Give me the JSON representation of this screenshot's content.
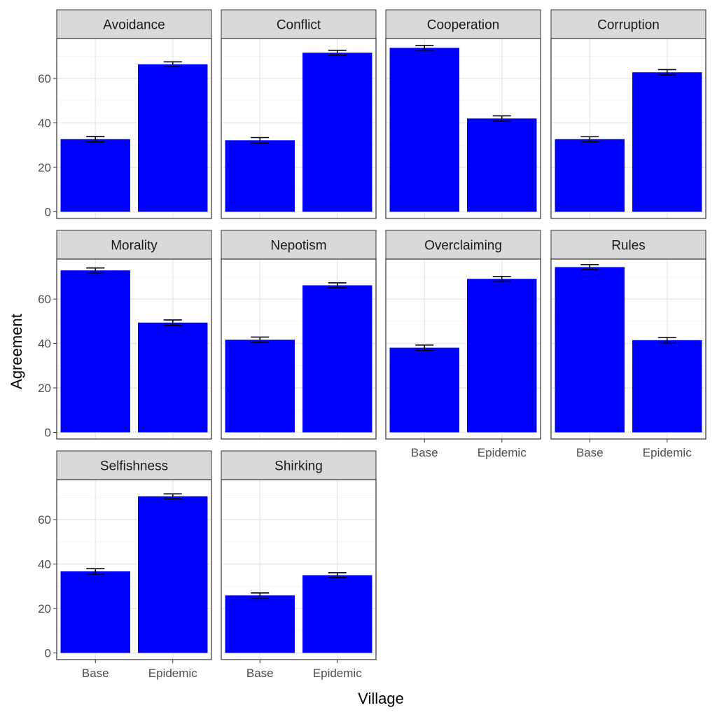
{
  "chart_data": {
    "type": "bar",
    "facet_layout": {
      "columns": 4,
      "rows": 3
    },
    "xlabel": "Village",
    "ylabel": "Agreement",
    "categories": [
      "Base",
      "Epidemic"
    ],
    "ylim": [
      -3,
      78
    ],
    "yticks": [
      0,
      20,
      40,
      60
    ],
    "grid": true,
    "bar_color": "#0000ff",
    "panels": [
      {
        "title": "Avoidance",
        "values": [
          32.7,
          66.4
        ],
        "errors": [
          1.2,
          1.1
        ]
      },
      {
        "title": "Conflict",
        "values": [
          32.2,
          71.6
        ],
        "errors": [
          1.2,
          1.1
        ]
      },
      {
        "title": "Cooperation",
        "values": [
          73.8,
          42.0
        ],
        "errors": [
          1.1,
          1.2
        ]
      },
      {
        "title": "Corruption",
        "values": [
          32.7,
          62.8
        ],
        "errors": [
          1.1,
          1.2
        ]
      },
      {
        "title": "Morality",
        "values": [
          72.9,
          49.4
        ],
        "errors": [
          1.1,
          1.2
        ]
      },
      {
        "title": "Nepotism",
        "values": [
          41.7,
          66.2
        ],
        "errors": [
          1.2,
          1.1
        ]
      },
      {
        "title": "Overclaiming",
        "values": [
          38.1,
          69.1
        ],
        "errors": [
          1.2,
          1.1
        ]
      },
      {
        "title": "Rules",
        "values": [
          74.4,
          41.5
        ],
        "errors": [
          1.1,
          1.2
        ]
      },
      {
        "title": "Selfishness",
        "values": [
          36.7,
          70.5
        ],
        "errors": [
          1.2,
          1.1
        ]
      },
      {
        "title": "Shirking",
        "values": [
          25.9,
          35.0
        ],
        "errors": [
          1.1,
          1.1
        ]
      }
    ]
  }
}
